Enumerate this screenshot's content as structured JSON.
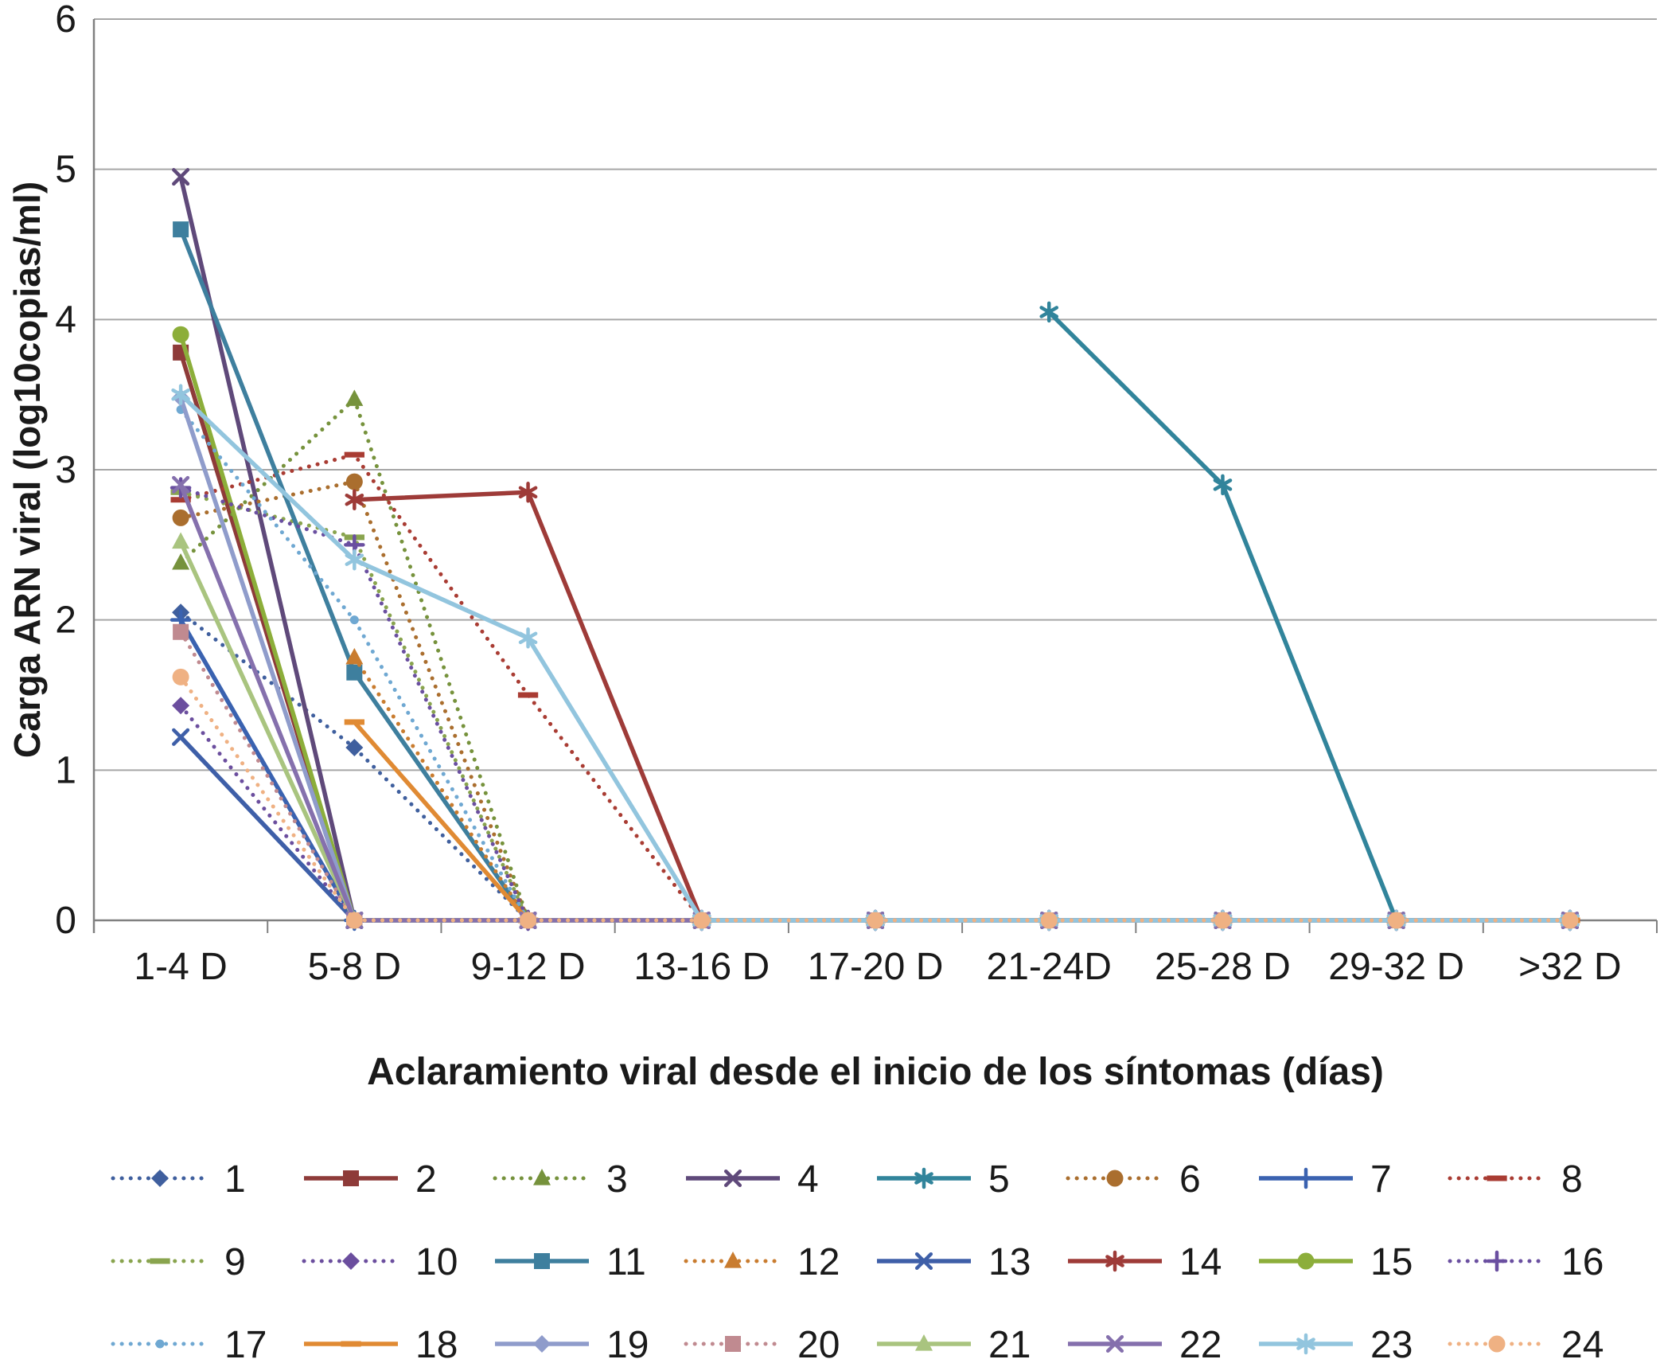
{
  "axes": {
    "y_label": "Carga ARN viral (log10copias/ml)",
    "x_label": "Aclaramiento viral desde el inicio de los síntomas (días)",
    "y_ticks": [
      0,
      1,
      2,
      3,
      4,
      5,
      6
    ],
    "grid_color": "#a6a6a6",
    "axis_color": "#808080",
    "text_color": "#1a1a1a"
  },
  "chart_data": {
    "type": "line",
    "title": "",
    "xlabel": "Aclaramiento viral desde el inicio de los síntomas (días)",
    "ylabel": "Carga ARN viral (log10copias/ml)",
    "ylim": [
      0,
      6
    ],
    "grid": true,
    "legend_position": "bottom",
    "categories": [
      "1-4 D",
      "5-8 D",
      "9-12 D",
      "13-16 D",
      "17-20 D",
      "21-24D",
      "25-28 D",
      "29-32 D",
      ">32 D"
    ],
    "series": [
      {
        "name": "1",
        "color": "#3F5F9E",
        "style": "dotted",
        "marker": "diamond",
        "values": [
          2.05,
          1.15,
          0,
          0,
          0,
          0,
          0,
          0,
          0
        ]
      },
      {
        "name": "2",
        "color": "#8E3B39",
        "style": "solid",
        "marker": "square",
        "values": [
          3.78,
          0,
          0,
          0,
          0,
          0,
          0,
          0,
          0
        ]
      },
      {
        "name": "3",
        "color": "#76923C",
        "style": "dotted",
        "marker": "triangle",
        "values": [
          2.38,
          3.47,
          0,
          0,
          0,
          0,
          0,
          0,
          0
        ]
      },
      {
        "name": "4",
        "color": "#5F497A",
        "style": "solid",
        "marker": "x",
        "values": [
          4.95,
          0,
          0,
          0,
          0,
          0,
          0,
          0,
          0
        ]
      },
      {
        "name": "5",
        "color": "#31849B",
        "style": "solid",
        "marker": "asterisk",
        "values": [
          null,
          null,
          null,
          null,
          null,
          4.05,
          2.9,
          0,
          0
        ]
      },
      {
        "name": "6",
        "color": "#AA6E2E",
        "style": "dotted",
        "marker": "circle",
        "values": [
          2.68,
          2.92,
          0,
          0,
          0,
          0,
          0,
          0,
          0
        ]
      },
      {
        "name": "7",
        "color": "#3A62B0",
        "style": "solid",
        "marker": "plus",
        "values": [
          2.0,
          0,
          0,
          0,
          0,
          0,
          0,
          0,
          0
        ]
      },
      {
        "name": "8",
        "color": "#A93C33",
        "style": "dotted",
        "marker": "dash",
        "values": [
          2.8,
          3.1,
          1.5,
          0,
          0,
          0,
          0,
          0,
          0
        ]
      },
      {
        "name": "9",
        "color": "#89A44E",
        "style": "dotted",
        "marker": "dash",
        "values": [
          2.85,
          2.55,
          0,
          0,
          0,
          0,
          0,
          0,
          0
        ]
      },
      {
        "name": "10",
        "color": "#6B4E9E",
        "style": "dotted",
        "marker": "diamond",
        "values": [
          1.43,
          0,
          0,
          0,
          0,
          0,
          0,
          0,
          0
        ]
      },
      {
        "name": "11",
        "color": "#3E7F9E",
        "style": "solid",
        "marker": "square",
        "values": [
          4.6,
          1.65,
          0,
          0,
          0,
          0,
          0,
          0,
          0
        ]
      },
      {
        "name": "12",
        "color": "#C97C2F",
        "style": "dotted",
        "marker": "triangle",
        "values": [
          null,
          1.75,
          0,
          0,
          0,
          0,
          0,
          0,
          0
        ]
      },
      {
        "name": "13",
        "color": "#3E5FA8",
        "style": "solid",
        "marker": "x",
        "values": [
          1.22,
          0,
          0,
          0,
          0,
          0,
          0,
          0,
          0
        ]
      },
      {
        "name": "14",
        "color": "#9E3B38",
        "style": "solid",
        "marker": "asterisk",
        "values": [
          null,
          2.8,
          2.85,
          0,
          0,
          0,
          0,
          0,
          0
        ]
      },
      {
        "name": "15",
        "color": "#8CAE3A",
        "style": "solid",
        "marker": "circle",
        "values": [
          3.9,
          0,
          0,
          0,
          0,
          0,
          0,
          0,
          0
        ]
      },
      {
        "name": "16",
        "color": "#6A4FA0",
        "style": "dotted",
        "marker": "plus",
        "values": [
          2.88,
          2.5,
          0,
          0,
          0,
          0,
          0,
          0,
          0
        ]
      },
      {
        "name": "17",
        "color": "#6FA8D2",
        "style": "dotted",
        "marker": "dot",
        "values": [
          3.4,
          2.0,
          0,
          0,
          0,
          0,
          0,
          0,
          0
        ]
      },
      {
        "name": "18",
        "color": "#E08A33",
        "style": "solid",
        "marker": "dash",
        "values": [
          null,
          1.32,
          0,
          0,
          0,
          0,
          0,
          0,
          0
        ]
      },
      {
        "name": "19",
        "color": "#8F9CCB",
        "style": "solid",
        "marker": "diamond",
        "values": [
          3.48,
          0,
          0,
          0,
          0,
          0,
          0,
          0,
          0
        ]
      },
      {
        "name": "20",
        "color": "#C08A90",
        "style": "dotted",
        "marker": "square",
        "values": [
          1.92,
          0,
          0,
          0,
          0,
          0,
          0,
          0,
          0
        ]
      },
      {
        "name": "21",
        "color": "#A9C47F",
        "style": "solid",
        "marker": "triangle",
        "values": [
          2.52,
          0,
          0,
          0,
          0,
          0,
          0,
          0,
          0
        ]
      },
      {
        "name": "22",
        "color": "#8570AD",
        "style": "solid",
        "marker": "x",
        "values": [
          2.9,
          0,
          0,
          0,
          0,
          0,
          0,
          0,
          0
        ]
      },
      {
        "name": "23",
        "color": "#92C5DE",
        "style": "solid",
        "marker": "asterisk",
        "values": [
          3.5,
          2.4,
          1.88,
          0,
          0,
          0,
          0,
          0,
          0
        ]
      },
      {
        "name": "24",
        "color": "#EFB183",
        "style": "dotted",
        "marker": "circle",
        "values": [
          1.62,
          0,
          0,
          0,
          0,
          0,
          0,
          0,
          0
        ]
      }
    ]
  }
}
